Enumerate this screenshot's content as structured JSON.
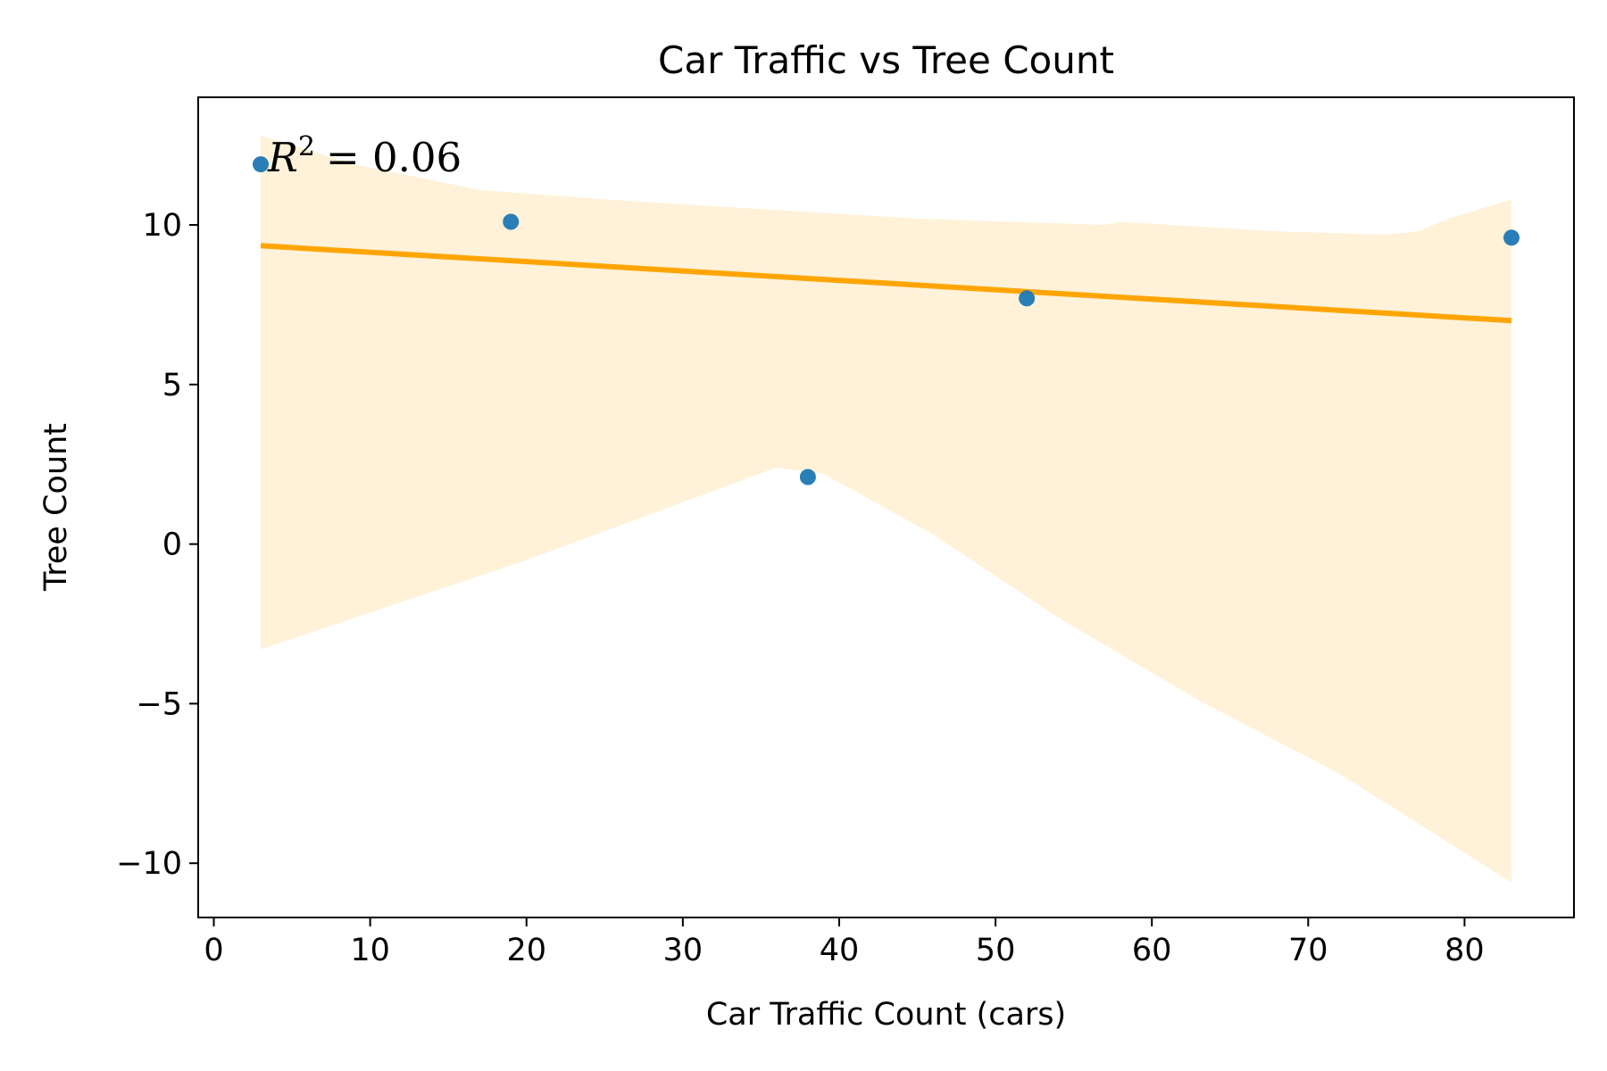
{
  "chart_data": {
    "type": "scatter",
    "title": "Car Traffic vs Tree Count",
    "xlabel": "Car Traffic Count (cars)",
    "ylabel": "Tree Count",
    "xlim": [
      -1,
      87
    ],
    "ylim": [
      -11.7,
      14
    ],
    "x_ticks": [
      0,
      10,
      20,
      30,
      40,
      50,
      60,
      70,
      80
    ],
    "y_ticks": [
      -10,
      -5,
      0,
      5,
      10
    ],
    "x_tick_labels": [
      "0",
      "10",
      "20",
      "30",
      "40",
      "50",
      "60",
      "70",
      "80"
    ],
    "y_tick_labels": [
      "−10",
      "−5",
      "0",
      "5",
      "10"
    ],
    "grid": false,
    "series": [
      {
        "type": "scatter",
        "points": [
          {
            "x": 3,
            "y": 11.9
          },
          {
            "x": 19,
            "y": 10.1
          },
          {
            "x": 38,
            "y": 2.1
          },
          {
            "x": 52,
            "y": 7.7
          },
          {
            "x": 83,
            "y": 9.6
          }
        ],
        "color": "#1f77b4"
      },
      {
        "type": "line",
        "points": [
          {
            "x": 3,
            "y": 9.35
          },
          {
            "x": 83,
            "y": 7.0
          }
        ],
        "color": "#ffa500"
      },
      {
        "type": "area",
        "upper": [
          {
            "x": 3,
            "y": 12.8
          },
          {
            "x": 9,
            "y": 11.9
          },
          {
            "x": 17,
            "y": 11.1
          },
          {
            "x": 25,
            "y": 10.8
          },
          {
            "x": 35,
            "y": 10.5
          },
          {
            "x": 45,
            "y": 10.2
          },
          {
            "x": 57,
            "y": 10.0
          },
          {
            "x": 58,
            "y": 10.1
          },
          {
            "x": 68,
            "y": 9.8
          },
          {
            "x": 75,
            "y": 9.7
          },
          {
            "x": 77,
            "y": 9.8
          },
          {
            "x": 79,
            "y": 10.2
          },
          {
            "x": 83,
            "y": 10.8
          }
        ],
        "lower": [
          {
            "x": 3,
            "y": -3.3
          },
          {
            "x": 20,
            "y": -0.5
          },
          {
            "x": 36,
            "y": 2.4
          },
          {
            "x": 39,
            "y": 2.2
          },
          {
            "x": 46,
            "y": 0.3
          },
          {
            "x": 54,
            "y": -2.3
          },
          {
            "x": 63,
            "y": -4.9
          },
          {
            "x": 72,
            "y": -7.2
          },
          {
            "x": 83,
            "y": -10.6
          }
        ],
        "color": "#ffa500",
        "opacity": 0.15
      }
    ],
    "annotations": [
      {
        "text": "R² = 0.06",
        "x": 3.5,
        "y": 12.0
      }
    ]
  },
  "annotation": {
    "r_label": "R",
    "exponent": "2",
    "equals_value": "= 0.06"
  }
}
